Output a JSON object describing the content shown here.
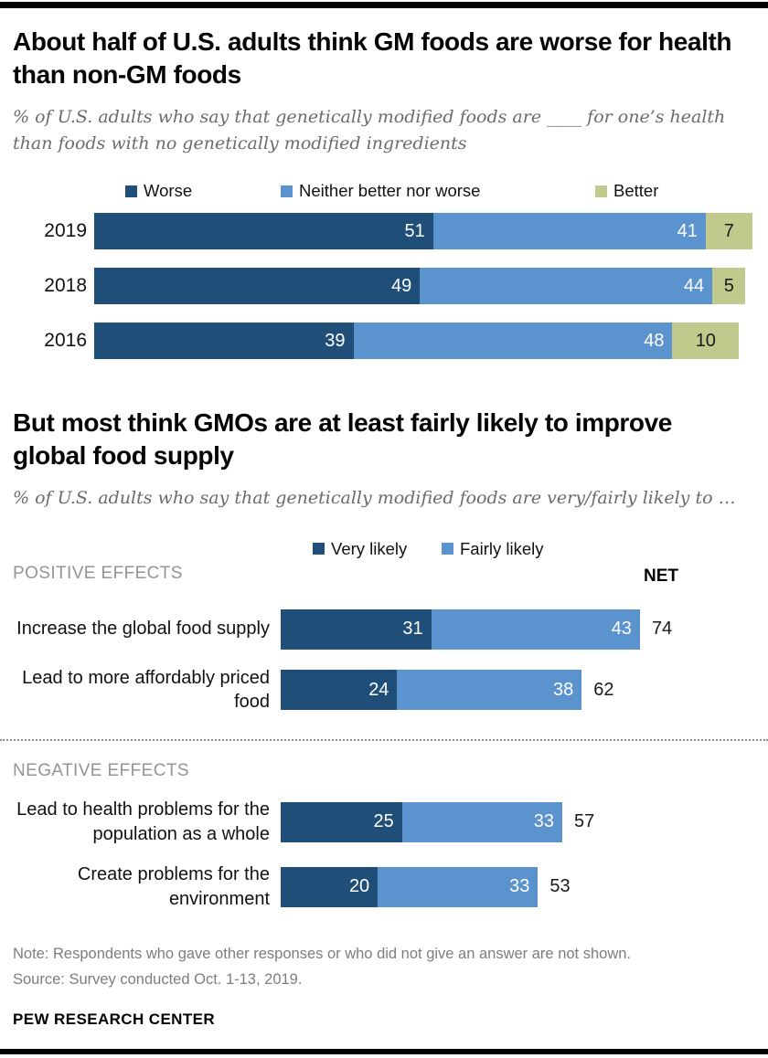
{
  "header": {
    "title": "About half of U.S. adults think GM foods are worse for health than non-GM foods",
    "subtitle": "% of U.S. adults who say that genetically modified foods are ____ for one’s health than foods with no genetically modified ingredients"
  },
  "section2": {
    "title": "But most think GMOs are at least fairly likely to improve global food supply",
    "subtitle": "% of U.S. adults who say that genetically modified foods are very/fairly likely to …"
  },
  "chart_data": [
    {
      "type": "bar",
      "stacked": true,
      "orientation": "horizontal",
      "title": "About half of U.S. adults think GM foods are worse for health than non-GM foods",
      "categories": [
        "2019",
        "2018",
        "2016"
      ],
      "series": [
        {
          "name": "Worse",
          "color": "#1F4E79",
          "values": [
            51,
            49,
            39
          ]
        },
        {
          "name": "Neither better nor worse",
          "color": "#5B93CE",
          "values": [
            41,
            44,
            48
          ]
        },
        {
          "name": "Better",
          "color": "#C1C98D",
          "values": [
            7,
            5,
            10
          ]
        }
      ],
      "xlim": [
        0,
        100
      ],
      "value_labels": "inside",
      "legend_position": "top"
    },
    {
      "type": "bar",
      "stacked": true,
      "orientation": "horizontal",
      "title": "But most think GMOs are at least fairly likely to improve global food supply",
      "net_label": "NET",
      "series": [
        {
          "name": "Very likely",
          "color": "#1F4E79"
        },
        {
          "name": "Fairly likely",
          "color": "#5B93CE"
        }
      ],
      "groups": [
        {
          "label": "POSITIVE EFFECTS",
          "rows": [
            {
              "category": "Increase the global food supply",
              "values": [
                31,
                43
              ],
              "net": 74
            },
            {
              "category": "Lead to more affordably priced food",
              "values": [
                24,
                38
              ],
              "net": 62
            }
          ]
        },
        {
          "label": "NEGATIVE EFFECTS",
          "rows": [
            {
              "category": "Lead to health problems for the population as a whole",
              "values": [
                25,
                33
              ],
              "net": 57
            },
            {
              "category": "Create problems for the environment",
              "values": [
                20,
                33
              ],
              "net": 53
            }
          ]
        }
      ],
      "xlim": [
        0,
        100
      ],
      "value_labels": "inside",
      "legend_position": "top"
    }
  ],
  "footer": {
    "note": "Note: Respondents who gave other responses or who did not give an answer are not shown.",
    "source": "Source: Survey conducted Oct. 1-13, 2019.",
    "brand": "PEW RESEARCH CENTER"
  }
}
